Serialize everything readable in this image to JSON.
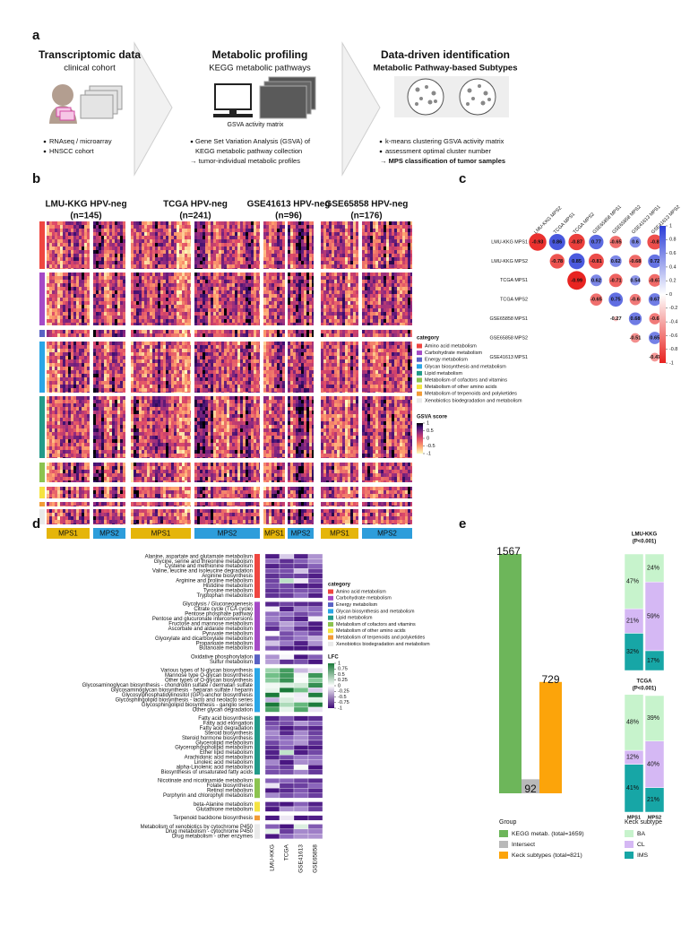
{
  "a": {
    "label": "a",
    "sections": [
      {
        "title": "Transcriptomic data",
        "subtitle": "clinical cohort",
        "lines": [
          "RNAseq / microarray",
          "HNSCC cohort"
        ]
      },
      {
        "title": "Metabolic profiling",
        "subtitle": "KEGG metabolic pathways",
        "caption": "GSVA activity matrix",
        "lines": [
          "Gene Set Variation Analysis (GSVA) of",
          "KEGG metabolic pathway collection",
          "→ tumor-individual metabolic profiles"
        ]
      },
      {
        "title": "Data-driven identification",
        "subtitle": "Metabolic Pathway-based Subtypes",
        "lines": [
          "k-means clustering GSVA activity matrix",
          "assessment optimal cluster number",
          "→ MPS classification of tumor samples"
        ]
      }
    ]
  },
  "b": {
    "label": "b",
    "cohorts": [
      {
        "name": "LMU-KKG HPV-neg",
        "n": "(n=145)"
      },
      {
        "name": "TCGA HPV-neg",
        "n": "(n=241)"
      },
      {
        "name": "GSE41613 HPV-neg",
        "n": "(n=96)"
      },
      {
        "name": "GSE65858 HPV-neg",
        "n": "(n=176)"
      }
    ],
    "groups": [
      {
        "name": "MPS1",
        "color": "#e5b50a"
      },
      {
        "name": "MPS2",
        "color": "#2d9ddb"
      }
    ],
    "category_title": "category",
    "categories": [
      {
        "name": "Amino acid metabolism",
        "color": "#ef4640"
      },
      {
        "name": "Carbohydrate metabolism",
        "color": "#a54ac6"
      },
      {
        "name": "Energy metabolism",
        "color": "#5961c4"
      },
      {
        "name": "Glycan biosynthesis and metabolism",
        "color": "#2aa6e6"
      },
      {
        "name": "Lipid metabolism",
        "color": "#229b8a"
      },
      {
        "name": "Metabolism of cofactors and vitamins",
        "color": "#8cc34f"
      },
      {
        "name": "Metabolism of other amino acids",
        "color": "#f5e341"
      },
      {
        "name": "Metabolism of terpenoids and polyketides",
        "color": "#f29b36"
      },
      {
        "name": "Xenobiotics biodegradation and metabolism",
        "color": "#e9e9e9"
      }
    ],
    "score_title": "GSVA score",
    "score_lim": [
      -1,
      1
    ],
    "score_ticks": [
      1,
      0.5,
      0,
      -0.5,
      -1
    ]
  },
  "c": {
    "label": "c",
    "type": "correlation",
    "rows": [
      "LMU-KKG MPS1",
      "LMU-KKG MPS2",
      "TCGA MPS1",
      "TCGA MPS2",
      "GSE65858 MPS1",
      "GSE65858 MPS2",
      "GSE41613 MPS1"
    ],
    "columns": [
      "LMU-KKG MPS2",
      "TCGA MPS1",
      "TCGA MPS2",
      "GSE65858 MPS1",
      "GSE65858 MPS2",
      "GSE41613 MPS1",
      "GSE41613 MPS2"
    ],
    "values": [
      [
        -0.93,
        0.86,
        -0.87,
        0.77,
        -0.65,
        0.6,
        -0.8
      ],
      [
        null,
        -0.78,
        0.85,
        -0.81,
        0.62,
        -0.68,
        0.72
      ],
      [
        null,
        null,
        -0.99,
        0.62,
        -0.71,
        0.54,
        -0.67
      ],
      [
        null,
        null,
        null,
        -0.65,
        0.75,
        -0.6,
        0.67
      ],
      [
        null,
        null,
        null,
        null,
        -0.27,
        0.68,
        -0.6
      ],
      [
        null,
        null,
        null,
        null,
        null,
        -0.51,
        0.65
      ],
      [
        null,
        null,
        null,
        null,
        null,
        null,
        -0.47
      ]
    ],
    "lim": [
      -1,
      1
    ],
    "ticks": [
      1,
      0.8,
      0.6,
      0.4,
      0.2,
      0,
      -0.2,
      -0.4,
      -0.6,
      -0.8,
      -1
    ]
  },
  "d": {
    "label": "d",
    "groups": [
      [
        "Alanine, aspartate and glutamate metabolism",
        "Glycine, serine and threonine metabolism",
        "Cysteine and methionine metabolism",
        "Valine, leucine and isoleucine degradation",
        "Arginine biosynthesis",
        "Arginine and proline metabolism",
        "Histidine metabolism",
        "Tyrosine metabolism",
        "Tryptophan metabolism"
      ],
      [
        "Glycolysis / Gluconeogenesis",
        "Citrate cycle (TCA cycle)",
        "Pentose phosphate pathway",
        "Pentose and glucuronate interconversions",
        "Fructose and mannose metabolism",
        "Ascorbate and aldarate metabolism",
        "Pyruvate metabolism",
        "Glyoxylate and dicarboxylate metabolism",
        "Propanoate metabolism",
        "Butanoate metabolism"
      ],
      [
        "Oxidative phosphorylation",
        "Sulfur metabolism"
      ],
      [
        "Various types of N-glycan biosynthesis",
        "Mannose type O-glycan biosynthesis",
        "Other types of O-glycan biosynthesis",
        "Glycosaminoglycan biosynthesis - chondroitin sulfate / dermatan sulfate",
        "Glycosaminoglycan biosynthesis - heparan sulfate / heparin",
        "Glycosylphosphatidylinositol (GPI)-anchor biosynthesis",
        "Glycosphingolipid biosynthesis - lacto and neolacto series",
        "Glycosphingolipid biosynthesis - ganglio series",
        "Other glycan degradation"
      ],
      [
        "Fatty acid biosynthesis",
        "Fatty acid elongation",
        "Fatty acid degradation",
        "Steroid biosynthesis",
        "Steroid hormone biosynthesis",
        "Glycerolipid metabolism",
        "Glycerophospholipid metabolism",
        "Ether lipid metabolism",
        "Arachidonic acid metabolism",
        "Linoleic acid metabolism",
        "alpha-Linolenic acid metabolism",
        "Biosynthesis of unsaturated fatty acids"
      ],
      [
        "Nicotinate and nicotinamide metabolism",
        "Folate biosynthesis",
        "Retinol metabolism",
        "Porphyrin and chlorophyll metabolism"
      ],
      [
        "beta-Alanine metabolism",
        "Glutathione metabolism"
      ],
      [
        "Terpenoid backbone biosynthesis"
      ],
      [
        "Metabolism of xenobiotics by cytochrome P450",
        "Drug metabolism - cytochrome P450",
        "Drug metabolism - other enzymes"
      ]
    ],
    "columns": [
      "LMU-KKG",
      "TCGA",
      "GSE41613",
      "GSE65858"
    ],
    "lfc_title": "LFC",
    "lfc_lim": [
      -1,
      1
    ],
    "lfc_ticks": [
      1,
      0.75,
      0.5,
      0.25,
      0,
      -0.25,
      -0.5,
      -0.75,
      -1
    ]
  },
  "e": {
    "label": "e",
    "overlap": {
      "type": "bar",
      "values": [
        1567,
        92,
        729
      ],
      "colors": [
        "#6db65a",
        "#b9b9b9",
        "#fca40a"
      ],
      "legend_title": "Group",
      "legend": [
        "KEGG metab. (total=1659)",
        "Intersect",
        "Keck subtypes (total=821)"
      ]
    },
    "subtypes": {
      "type": "stacked-bar",
      "categories": [
        "MPS1",
        "MPS2"
      ],
      "legend_title": "Keck subtype",
      "series": [
        {
          "name": "BA",
          "color": "#c7f3cc"
        },
        {
          "name": "CL",
          "color": "#d5b8f4"
        },
        {
          "name": "IMS",
          "color": "#17a6a6"
        }
      ],
      "panels": [
        {
          "title": "LMU-KKG",
          "subtitle": "(P<0.001)",
          "values": [
            [
              47,
              24
            ],
            [
              21,
              59
            ],
            [
              32,
              17
            ]
          ],
          "value_labels": [
            [
              "47%",
              "24%"
            ],
            [
              "21%",
              "59%"
            ],
            [
              "32%",
              "17%"
            ]
          ]
        },
        {
          "title": "TCGA",
          "subtitle": "(P<0.001)",
          "values": [
            [
              48,
              39
            ],
            [
              12,
              40
            ],
            [
              41,
              21
            ]
          ],
          "value_labels": [
            [
              "48%",
              "39%"
            ],
            [
              "12%",
              "40%"
            ],
            [
              "41%",
              "21%"
            ]
          ]
        }
      ]
    }
  }
}
